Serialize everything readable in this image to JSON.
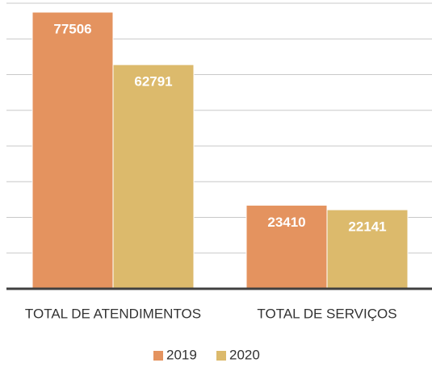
{
  "chart_data": {
    "type": "bar",
    "categories": [
      "TOTAL DE ATENDIMENTOS",
      "TOTAL DE SERVIÇOS"
    ],
    "series": [
      {
        "name": "2019",
        "color": "#e4935f",
        "values": [
          77506,
          23410
        ]
      },
      {
        "name": "2020",
        "color": "#dcba6c",
        "values": [
          62791,
          22141
        ]
      }
    ],
    "ylim": [
      0,
      80000
    ],
    "yticks": [
      0,
      10000,
      20000,
      30000,
      40000,
      50000,
      60000,
      70000,
      80000
    ],
    "grid": true,
    "legend": "bottom"
  }
}
